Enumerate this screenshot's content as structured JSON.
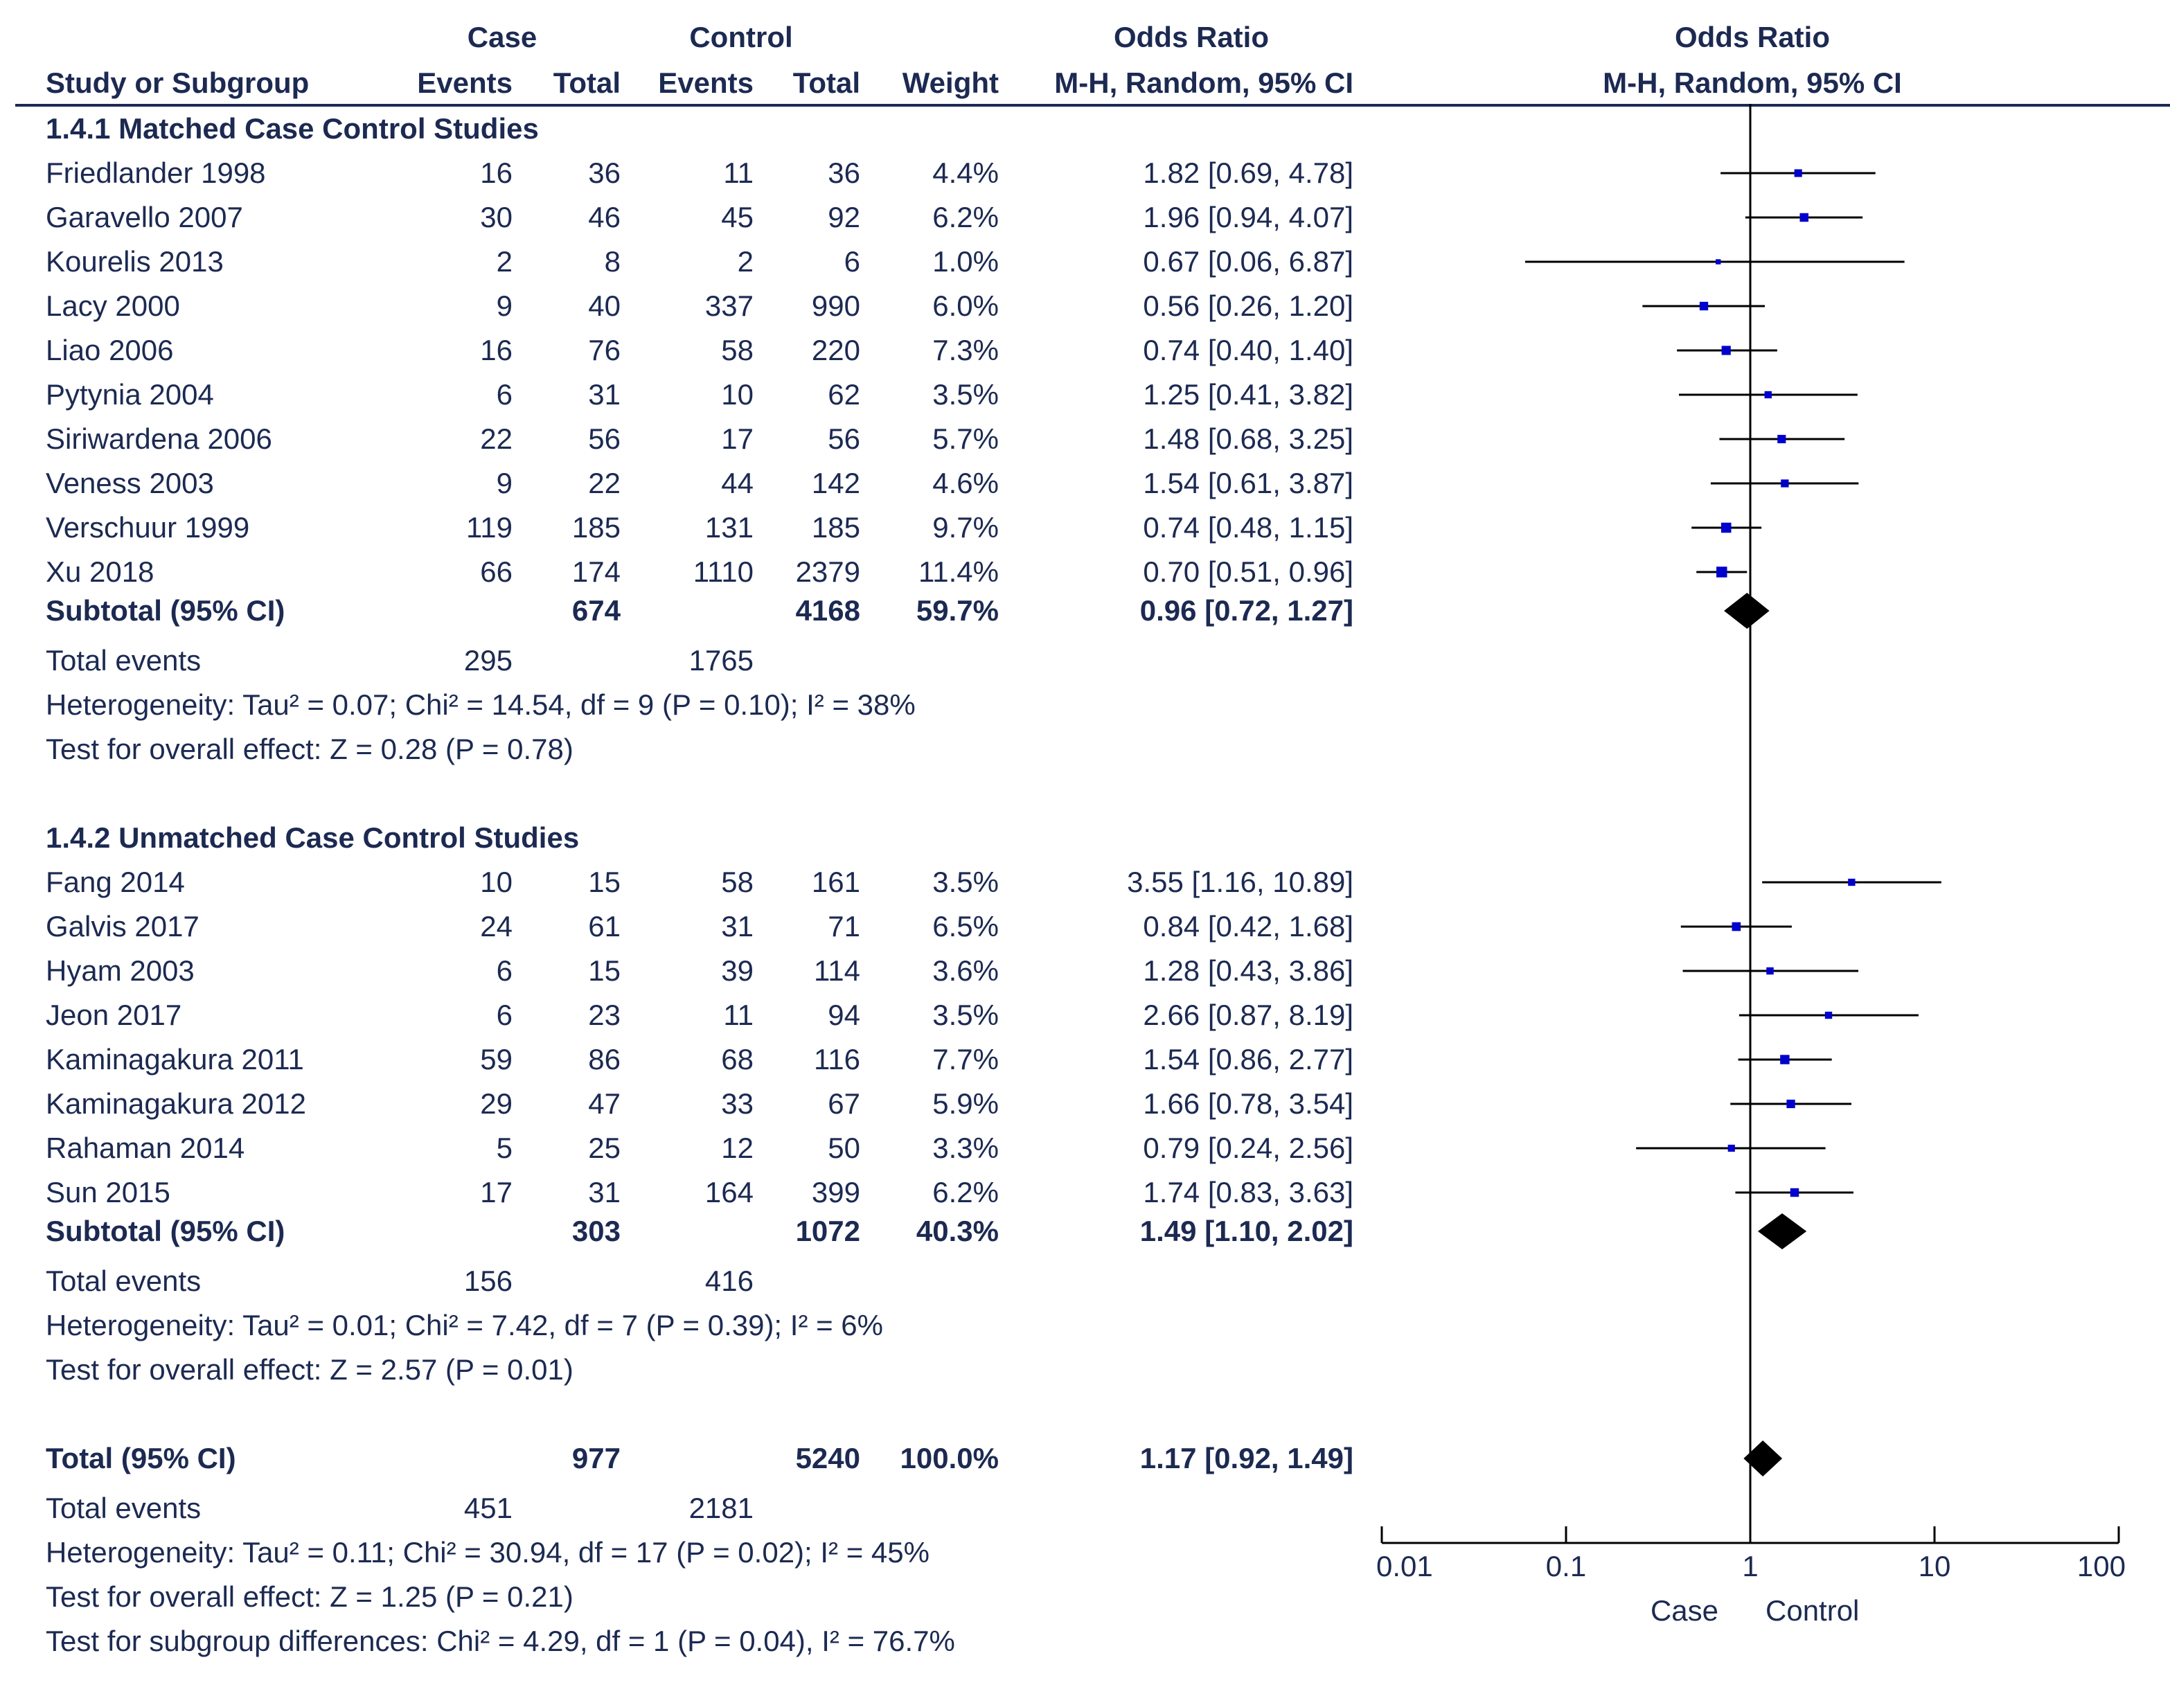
{
  "header": {
    "case_group": "Case",
    "control_group": "Control",
    "or_group": "Odds Ratio",
    "plot_group": "Odds Ratio",
    "col_study": "Study or Subgroup",
    "col_case_events": "Events",
    "col_case_total": "Total",
    "col_ctrl_events": "Events",
    "col_ctrl_total": "Total",
    "col_weight": "Weight",
    "col_or": "M-H, Random, 95% CI",
    "col_plot": "M-H, Random, 95% CI"
  },
  "subgroups": [
    {
      "title": "1.4.1 Matched Case Control Studies",
      "studies": [
        {
          "name": "Friedlander 1998",
          "case_events": "16",
          "case_total": "36",
          "ctrl_events": "11",
          "ctrl_total": "36",
          "weight": "4.4%",
          "or_text": "1.82 [0.69, 4.78]"
        },
        {
          "name": "Garavello 2007",
          "case_events": "30",
          "case_total": "46",
          "ctrl_events": "45",
          "ctrl_total": "92",
          "weight": "6.2%",
          "or_text": "1.96 [0.94, 4.07]"
        },
        {
          "name": "Kourelis 2013",
          "case_events": "2",
          "case_total": "8",
          "ctrl_events": "2",
          "ctrl_total": "6",
          "weight": "1.0%",
          "or_text": "0.67 [0.06, 6.87]"
        },
        {
          "name": "Lacy 2000",
          "case_events": "9",
          "case_total": "40",
          "ctrl_events": "337",
          "ctrl_total": "990",
          "weight": "6.0%",
          "or_text": "0.56 [0.26, 1.20]"
        },
        {
          "name": "Liao 2006",
          "case_events": "16",
          "case_total": "76",
          "ctrl_events": "58",
          "ctrl_total": "220",
          "weight": "7.3%",
          "or_text": "0.74 [0.40, 1.40]"
        },
        {
          "name": "Pytynia 2004",
          "case_events": "6",
          "case_total": "31",
          "ctrl_events": "10",
          "ctrl_total": "62",
          "weight": "3.5%",
          "or_text": "1.25 [0.41, 3.82]"
        },
        {
          "name": "Siriwardena 2006",
          "case_events": "22",
          "case_total": "56",
          "ctrl_events": "17",
          "ctrl_total": "56",
          "weight": "5.7%",
          "or_text": "1.48 [0.68, 3.25]"
        },
        {
          "name": "Veness 2003",
          "case_events": "9",
          "case_total": "22",
          "ctrl_events": "44",
          "ctrl_total": "142",
          "weight": "4.6%",
          "or_text": "1.54 [0.61, 3.87]"
        },
        {
          "name": "Verschuur 1999",
          "case_events": "119",
          "case_total": "185",
          "ctrl_events": "131",
          "ctrl_total": "185",
          "weight": "9.7%",
          "or_text": "0.74 [0.48, 1.15]"
        },
        {
          "name": "Xu 2018",
          "case_events": "66",
          "case_total": "174",
          "ctrl_events": "1110",
          "ctrl_total": "2379",
          "weight": "11.4%",
          "or_text": "0.70 [0.51, 0.96]"
        }
      ],
      "subtotal": {
        "label": "Subtotal (95% CI)",
        "case_total": "674",
        "ctrl_total": "4168",
        "weight": "59.7%",
        "or_text": "0.96 [0.72, 1.27]"
      },
      "total_events": {
        "label": "Total events",
        "case": "295",
        "ctrl": "1765"
      },
      "heterogeneity": "Heterogeneity: Tau² = 0.07; Chi² = 14.54, df = 9 (P = 0.10); I² = 38%",
      "overall_effect": "Test for overall effect: Z = 0.28 (P = 0.78)"
    },
    {
      "title": "1.4.2 Unmatched Case Control Studies",
      "studies": [
        {
          "name": "Fang 2014",
          "case_events": "10",
          "case_total": "15",
          "ctrl_events": "58",
          "ctrl_total": "161",
          "weight": "3.5%",
          "or_text": "3.55 [1.16, 10.89]"
        },
        {
          "name": "Galvis 2017",
          "case_events": "24",
          "case_total": "61",
          "ctrl_events": "31",
          "ctrl_total": "71",
          "weight": "6.5%",
          "or_text": "0.84 [0.42, 1.68]"
        },
        {
          "name": "Hyam 2003",
          "case_events": "6",
          "case_total": "15",
          "ctrl_events": "39",
          "ctrl_total": "114",
          "weight": "3.6%",
          "or_text": "1.28 [0.43, 3.86]"
        },
        {
          "name": "Jeon 2017",
          "case_events": "6",
          "case_total": "23",
          "ctrl_events": "11",
          "ctrl_total": "94",
          "weight": "3.5%",
          "or_text": "2.66 [0.87, 8.19]"
        },
        {
          "name": "Kaminagakura 2011",
          "case_events": "59",
          "case_total": "86",
          "ctrl_events": "68",
          "ctrl_total": "116",
          "weight": "7.7%",
          "or_text": "1.54 [0.86, 2.77]"
        },
        {
          "name": "Kaminagakura 2012",
          "case_events": "29",
          "case_total": "47",
          "ctrl_events": "33",
          "ctrl_total": "67",
          "weight": "5.9%",
          "or_text": "1.66 [0.78, 3.54]"
        },
        {
          "name": "Rahaman 2014",
          "case_events": "5",
          "case_total": "25",
          "ctrl_events": "12",
          "ctrl_total": "50",
          "weight": "3.3%",
          "or_text": "0.79 [0.24, 2.56]"
        },
        {
          "name": "Sun 2015",
          "case_events": "17",
          "case_total": "31",
          "ctrl_events": "164",
          "ctrl_total": "399",
          "weight": "6.2%",
          "or_text": "1.74 [0.83, 3.63]"
        }
      ],
      "subtotal": {
        "label": "Subtotal (95% CI)",
        "case_total": "303",
        "ctrl_total": "1072",
        "weight": "40.3%",
        "or_text": "1.49 [1.10, 2.02]"
      },
      "total_events": {
        "label": "Total events",
        "case": "156",
        "ctrl": "416"
      },
      "heterogeneity": "Heterogeneity: Tau² = 0.01; Chi² = 7.42, df = 7 (P = 0.39); I² = 6%",
      "overall_effect": "Test for overall effect: Z = 2.57 (P = 0.01)"
    }
  ],
  "total": {
    "label": "Total (95% CI)",
    "case_total": "977",
    "ctrl_total": "5240",
    "weight": "100.0%",
    "or_text": "1.17 [0.92, 1.49]",
    "events_label": "Total events",
    "events_case": "451",
    "events_ctrl": "2181",
    "heterogeneity": "Heterogeneity: Tau² = 0.11; Chi² = 30.94, df = 17 (P = 0.02); I² = 45%",
    "overall_effect": "Test for overall effect: Z = 1.25 (P = 0.21)",
    "subgroup_diff": "Test for subgroup differences: Chi² = 4.29, df = 1 (P = 0.04), I² = 76.7%"
  },
  "axis": {
    "ticks": [
      "0.01",
      "0.1",
      "1",
      "10",
      "100"
    ],
    "left_label": "Case",
    "right_label": "Control"
  },
  "colors": {
    "text": "#1c2a52",
    "marker": "#0000cc",
    "line": "#000000"
  },
  "chart_data": {
    "type": "forest",
    "title": "Odds Ratio M-H, Random, 95% CI",
    "xscale": "log",
    "xlim": [
      0.01,
      100
    ],
    "reference": 1,
    "xlabel_left": "Case",
    "xlabel_right": "Control",
    "studies": [
      {
        "name": "Friedlander 1998",
        "or": 1.82,
        "lo": 0.69,
        "hi": 4.78,
        "weight": 4.4
      },
      {
        "name": "Garavello 2007",
        "or": 1.96,
        "lo": 0.94,
        "hi": 4.07,
        "weight": 6.2
      },
      {
        "name": "Kourelis 2013",
        "or": 0.67,
        "lo": 0.06,
        "hi": 6.87,
        "weight": 1.0
      },
      {
        "name": "Lacy 2000",
        "or": 0.56,
        "lo": 0.26,
        "hi": 1.2,
        "weight": 6.0
      },
      {
        "name": "Liao 2006",
        "or": 0.74,
        "lo": 0.4,
        "hi": 1.4,
        "weight": 7.3
      },
      {
        "name": "Pytynia 2004",
        "or": 1.25,
        "lo": 0.41,
        "hi": 3.82,
        "weight": 3.5
      },
      {
        "name": "Siriwardena 2006",
        "or": 1.48,
        "lo": 0.68,
        "hi": 3.25,
        "weight": 5.7
      },
      {
        "name": "Veness 2003",
        "or": 1.54,
        "lo": 0.61,
        "hi": 3.87,
        "weight": 4.6
      },
      {
        "name": "Verschuur 1999",
        "or": 0.74,
        "lo": 0.48,
        "hi": 1.15,
        "weight": 9.7
      },
      {
        "name": "Xu 2018",
        "or": 0.7,
        "lo": 0.51,
        "hi": 0.96,
        "weight": 11.4
      },
      {
        "name": "Subtotal 1.4.1",
        "or": 0.96,
        "lo": 0.72,
        "hi": 1.27,
        "weight": 59.7,
        "diamond": true
      },
      {
        "name": "Fang 2014",
        "or": 3.55,
        "lo": 1.16,
        "hi": 10.89,
        "weight": 3.5
      },
      {
        "name": "Galvis 2017",
        "or": 0.84,
        "lo": 0.42,
        "hi": 1.68,
        "weight": 6.5
      },
      {
        "name": "Hyam 2003",
        "or": 1.28,
        "lo": 0.43,
        "hi": 3.86,
        "weight": 3.6
      },
      {
        "name": "Jeon 2017",
        "or": 2.66,
        "lo": 0.87,
        "hi": 8.19,
        "weight": 3.5
      },
      {
        "name": "Kaminagakura 2011",
        "or": 1.54,
        "lo": 0.86,
        "hi": 2.77,
        "weight": 7.7
      },
      {
        "name": "Kaminagakura 2012",
        "or": 1.66,
        "lo": 0.78,
        "hi": 3.54,
        "weight": 5.9
      },
      {
        "name": "Rahaman 2014",
        "or": 0.79,
        "lo": 0.24,
        "hi": 2.56,
        "weight": 3.3
      },
      {
        "name": "Sun 2015",
        "or": 1.74,
        "lo": 0.83,
        "hi": 3.63,
        "weight": 6.2
      },
      {
        "name": "Subtotal 1.4.2",
        "or": 1.49,
        "lo": 1.1,
        "hi": 2.02,
        "weight": 40.3,
        "diamond": true
      },
      {
        "name": "Total",
        "or": 1.17,
        "lo": 0.92,
        "hi": 1.49,
        "weight": 100.0,
        "diamond": true
      }
    ]
  }
}
